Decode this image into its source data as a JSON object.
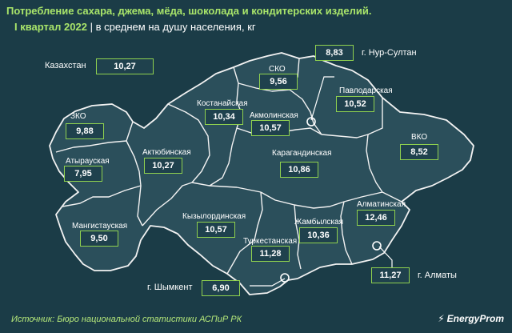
{
  "title": "Потребление сахара, джема, мёда, шоколада и кондитерских изделий.",
  "subtitle_period": "I квартал 2022",
  "subtitle_separator": "|",
  "subtitle_unit": "в среднем на душу населения, кг",
  "kazakhstan": {
    "label": "Казахстан",
    "value": "10,27"
  },
  "regions": [
    {
      "key": "zko",
      "name": "ЗКО",
      "value": "9,88"
    },
    {
      "key": "atyrau",
      "name": "Атырауская",
      "value": "7,95"
    },
    {
      "key": "mangistau",
      "name": "Мангистауская",
      "value": "9,50"
    },
    {
      "key": "aktobe",
      "name": "Актюбинская",
      "value": "10,27"
    },
    {
      "key": "kostanay",
      "name": "Костанайская",
      "value": "10,34"
    },
    {
      "key": "sko",
      "name": "СКО",
      "value": "9,56"
    },
    {
      "key": "akmola",
      "name": "Акмолинская",
      "value": "10,57"
    },
    {
      "key": "pavlodar",
      "name": "Павлодарская",
      "value": "10,52"
    },
    {
      "key": "vko",
      "name": "ВКО",
      "value": "8,52"
    },
    {
      "key": "karaganda",
      "name": "Карагандинская",
      "value": "10,86"
    },
    {
      "key": "kyzylorda",
      "name": "Кызылординская",
      "value": "10,57"
    },
    {
      "key": "turkestan",
      "name": "Туркестанская",
      "value": "11,28"
    },
    {
      "key": "zhambyl",
      "name": "Жамбылская",
      "value": "10,36"
    },
    {
      "key": "almaty_reg",
      "name": "Алматинская",
      "value": "12,46"
    }
  ],
  "cities": [
    {
      "key": "nur_sultan",
      "name": "г. Нур-Султан",
      "value": "8,83"
    },
    {
      "key": "almaty",
      "name": "г. Алматы",
      "value": "11,27"
    },
    {
      "key": "shymkent",
      "name": "г. Шымкент",
      "value": "6,90"
    }
  ],
  "source": "Источник: Бюро национальной статистики АСПиР РК",
  "logo": "EnergyProm",
  "colors": {
    "background": "#1b3c47",
    "region_fill": "#2b4f5b",
    "border": "#f2f2f2",
    "accent": "#8fd14f",
    "title": "#a9e56a"
  }
}
